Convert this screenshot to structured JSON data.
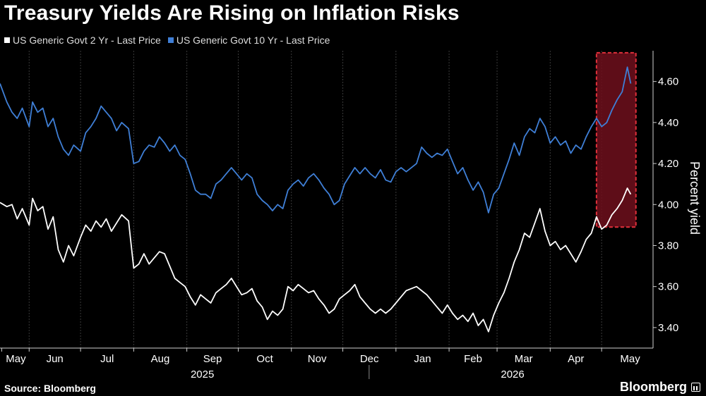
{
  "chart_data": {
    "type": "line",
    "title": "Treasury Yields Are Rising on Inflation Risks",
    "ylabel": "Percent yield",
    "ylim": [
      3.3,
      4.75
    ],
    "y_ticks": [
      3.4,
      3.6,
      3.8,
      4.0,
      4.2,
      4.4,
      4.6
    ],
    "y_tick_labels": [
      "3.40",
      "3.60",
      "3.80",
      "4.00",
      "4.20",
      "4.40",
      "4.60"
    ],
    "xlim": [
      "2025-05-15",
      "2026-05-31"
    ],
    "x_ticks": [
      {
        "label": "May",
        "date": "2025-05-16"
      },
      {
        "label": "Jun",
        "date": "2025-06-01"
      },
      {
        "label": "Jul",
        "date": "2025-07-01"
      },
      {
        "label": "Aug",
        "date": "2025-08-01"
      },
      {
        "label": "Sep",
        "date": "2025-09-01"
      },
      {
        "label": "Oct",
        "date": "2025-10-01"
      },
      {
        "label": "Nov",
        "date": "2025-11-01"
      },
      {
        "label": "Dec",
        "date": "2025-12-01"
      },
      {
        "label": "Jan",
        "date": "2026-01-01"
      },
      {
        "label": "Feb",
        "date": "2026-02-01"
      },
      {
        "label": "Mar",
        "date": "2026-03-01"
      },
      {
        "label": "Apr",
        "date": "2026-04-01"
      },
      {
        "label": "May",
        "date": "2026-05-01"
      }
    ],
    "year_labels": [
      {
        "label": "2025",
        "date": "2025-09-01"
      },
      {
        "label": "2026",
        "date": "2026-03-01"
      }
    ],
    "year_divider_date": "2026-01-01",
    "highlight": {
      "x_start": "2026-04-28",
      "x_end": "2026-05-21",
      "y_start": 3.89,
      "y_end": 4.74,
      "fill": "#6e0f1c",
      "border": "#e0303a"
    },
    "grid": "vertical",
    "legend_position": "top-left",
    "series": [
      {
        "name": "US Generic Govt 2 Yr - Last Price",
        "color": "#ffffff",
        "points": [
          [
            "2025-05-15",
            4.01
          ],
          [
            "2025-05-19",
            3.99
          ],
          [
            "2025-05-22",
            4.0
          ],
          [
            "2025-05-25",
            3.93
          ],
          [
            "2025-05-28",
            3.98
          ],
          [
            "2025-06-01",
            3.9
          ],
          [
            "2025-06-03",
            4.03
          ],
          [
            "2025-06-06",
            3.97
          ],
          [
            "2025-06-09",
            3.99
          ],
          [
            "2025-06-12",
            3.88
          ],
          [
            "2025-06-15",
            3.94
          ],
          [
            "2025-06-18",
            3.78
          ],
          [
            "2025-06-21",
            3.72
          ],
          [
            "2025-06-24",
            3.8
          ],
          [
            "2025-06-27",
            3.75
          ],
          [
            "2025-07-01",
            3.84
          ],
          [
            "2025-07-04",
            3.9
          ],
          [
            "2025-07-07",
            3.87
          ],
          [
            "2025-07-10",
            3.92
          ],
          [
            "2025-07-13",
            3.89
          ],
          [
            "2025-07-16",
            3.93
          ],
          [
            "2025-07-19",
            3.87
          ],
          [
            "2025-07-22",
            3.91
          ],
          [
            "2025-07-25",
            3.95
          ],
          [
            "2025-07-29",
            3.92
          ],
          [
            "2025-08-01",
            3.69
          ],
          [
            "2025-08-04",
            3.71
          ],
          [
            "2025-08-07",
            3.76
          ],
          [
            "2025-08-10",
            3.71
          ],
          [
            "2025-08-13",
            3.74
          ],
          [
            "2025-08-16",
            3.77
          ],
          [
            "2025-08-19",
            3.76
          ],
          [
            "2025-08-22",
            3.7
          ],
          [
            "2025-08-25",
            3.64
          ],
          [
            "2025-08-28",
            3.62
          ],
          [
            "2025-08-31",
            3.6
          ],
          [
            "2025-09-03",
            3.55
          ],
          [
            "2025-09-06",
            3.51
          ],
          [
            "2025-09-09",
            3.56
          ],
          [
            "2025-09-12",
            3.54
          ],
          [
            "2025-09-15",
            3.52
          ],
          [
            "2025-09-18",
            3.57
          ],
          [
            "2025-09-21",
            3.59
          ],
          [
            "2025-09-24",
            3.61
          ],
          [
            "2025-09-27",
            3.64
          ],
          [
            "2025-09-30",
            3.6
          ],
          [
            "2025-10-03",
            3.56
          ],
          [
            "2025-10-06",
            3.57
          ],
          [
            "2025-10-09",
            3.59
          ],
          [
            "2025-10-12",
            3.53
          ],
          [
            "2025-10-15",
            3.5
          ],
          [
            "2025-10-18",
            3.44
          ],
          [
            "2025-10-21",
            3.48
          ],
          [
            "2025-10-24",
            3.46
          ],
          [
            "2025-10-27",
            3.49
          ],
          [
            "2025-10-30",
            3.6
          ],
          [
            "2025-11-02",
            3.58
          ],
          [
            "2025-11-05",
            3.61
          ],
          [
            "2025-11-08",
            3.59
          ],
          [
            "2025-11-11",
            3.57
          ],
          [
            "2025-11-14",
            3.58
          ],
          [
            "2025-11-17",
            3.54
          ],
          [
            "2025-11-20",
            3.51
          ],
          [
            "2025-11-23",
            3.47
          ],
          [
            "2025-11-26",
            3.49
          ],
          [
            "2025-11-29",
            3.54
          ],
          [
            "2025-12-02",
            3.56
          ],
          [
            "2025-12-05",
            3.58
          ],
          [
            "2025-12-08",
            3.61
          ],
          [
            "2025-12-11",
            3.55
          ],
          [
            "2025-12-14",
            3.52
          ],
          [
            "2025-12-17",
            3.49
          ],
          [
            "2025-12-20",
            3.47
          ],
          [
            "2025-12-23",
            3.49
          ],
          [
            "2025-12-26",
            3.47
          ],
          [
            "2025-12-29",
            3.49
          ],
          [
            "2026-01-01",
            3.52
          ],
          [
            "2026-01-04",
            3.55
          ],
          [
            "2026-01-07",
            3.58
          ],
          [
            "2026-01-10",
            3.59
          ],
          [
            "2026-01-13",
            3.6
          ],
          [
            "2026-01-16",
            3.58
          ],
          [
            "2026-01-19",
            3.56
          ],
          [
            "2026-01-22",
            3.53
          ],
          [
            "2026-01-25",
            3.5
          ],
          [
            "2026-01-28",
            3.47
          ],
          [
            "2026-01-31",
            3.51
          ],
          [
            "2026-02-03",
            3.47
          ],
          [
            "2026-02-06",
            3.44
          ],
          [
            "2026-02-09",
            3.46
          ],
          [
            "2026-02-12",
            3.43
          ],
          [
            "2026-02-15",
            3.47
          ],
          [
            "2026-02-18",
            3.41
          ],
          [
            "2026-02-21",
            3.44
          ],
          [
            "2026-02-24",
            3.38
          ],
          [
            "2026-02-27",
            3.46
          ],
          [
            "2026-03-02",
            3.52
          ],
          [
            "2026-03-05",
            3.57
          ],
          [
            "2026-03-08",
            3.64
          ],
          [
            "2026-03-11",
            3.72
          ],
          [
            "2026-03-14",
            3.78
          ],
          [
            "2026-03-17",
            3.86
          ],
          [
            "2026-03-20",
            3.84
          ],
          [
            "2026-03-23",
            3.91
          ],
          [
            "2026-03-26",
            3.98
          ],
          [
            "2026-03-29",
            3.87
          ],
          [
            "2026-04-01",
            3.8
          ],
          [
            "2026-04-04",
            3.82
          ],
          [
            "2026-04-07",
            3.78
          ],
          [
            "2026-04-10",
            3.8
          ],
          [
            "2026-04-13",
            3.76
          ],
          [
            "2026-04-16",
            3.72
          ],
          [
            "2026-04-19",
            3.77
          ],
          [
            "2026-04-22",
            3.83
          ],
          [
            "2026-04-25",
            3.86
          ],
          [
            "2026-04-28",
            3.94
          ],
          [
            "2026-05-01",
            3.88
          ],
          [
            "2026-05-04",
            3.9
          ],
          [
            "2026-05-07",
            3.95
          ],
          [
            "2026-05-10",
            3.98
          ],
          [
            "2026-05-13",
            4.02
          ],
          [
            "2026-05-16",
            4.08
          ],
          [
            "2026-05-18",
            4.05
          ]
        ]
      },
      {
        "name": "US Generic Govt 10 Yr - Last Price",
        "color": "#3f7fd6",
        "points": [
          [
            "2025-05-15",
            4.59
          ],
          [
            "2025-05-19",
            4.5
          ],
          [
            "2025-05-22",
            4.45
          ],
          [
            "2025-05-25",
            4.42
          ],
          [
            "2025-05-28",
            4.47
          ],
          [
            "2025-06-01",
            4.38
          ],
          [
            "2025-06-03",
            4.5
          ],
          [
            "2025-06-06",
            4.45
          ],
          [
            "2025-06-09",
            4.47
          ],
          [
            "2025-06-12",
            4.38
          ],
          [
            "2025-06-15",
            4.42
          ],
          [
            "2025-06-18",
            4.33
          ],
          [
            "2025-06-21",
            4.27
          ],
          [
            "2025-06-24",
            4.24
          ],
          [
            "2025-06-27",
            4.29
          ],
          [
            "2025-07-01",
            4.26
          ],
          [
            "2025-07-04",
            4.35
          ],
          [
            "2025-07-07",
            4.38
          ],
          [
            "2025-07-10",
            4.42
          ],
          [
            "2025-07-13",
            4.48
          ],
          [
            "2025-07-16",
            4.45
          ],
          [
            "2025-07-19",
            4.42
          ],
          [
            "2025-07-22",
            4.36
          ],
          [
            "2025-07-25",
            4.4
          ],
          [
            "2025-07-29",
            4.37
          ],
          [
            "2025-08-01",
            4.2
          ],
          [
            "2025-08-04",
            4.21
          ],
          [
            "2025-08-07",
            4.26
          ],
          [
            "2025-08-10",
            4.29
          ],
          [
            "2025-08-13",
            4.28
          ],
          [
            "2025-08-16",
            4.33
          ],
          [
            "2025-08-19",
            4.3
          ],
          [
            "2025-08-22",
            4.26
          ],
          [
            "2025-08-25",
            4.29
          ],
          [
            "2025-08-28",
            4.24
          ],
          [
            "2025-08-31",
            4.22
          ],
          [
            "2025-09-03",
            4.15
          ],
          [
            "2025-09-06",
            4.07
          ],
          [
            "2025-09-09",
            4.05
          ],
          [
            "2025-09-12",
            4.05
          ],
          [
            "2025-09-15",
            4.03
          ],
          [
            "2025-09-18",
            4.1
          ],
          [
            "2025-09-21",
            4.12
          ],
          [
            "2025-09-24",
            4.15
          ],
          [
            "2025-09-27",
            4.18
          ],
          [
            "2025-09-30",
            4.15
          ],
          [
            "2025-10-03",
            4.12
          ],
          [
            "2025-10-06",
            4.15
          ],
          [
            "2025-10-09",
            4.13
          ],
          [
            "2025-10-12",
            4.05
          ],
          [
            "2025-10-15",
            4.02
          ],
          [
            "2025-10-18",
            4.0
          ],
          [
            "2025-10-21",
            3.97
          ],
          [
            "2025-10-24",
            4.0
          ],
          [
            "2025-10-27",
            3.98
          ],
          [
            "2025-10-30",
            4.07
          ],
          [
            "2025-11-02",
            4.1
          ],
          [
            "2025-11-05",
            4.12
          ],
          [
            "2025-11-08",
            4.09
          ],
          [
            "2025-11-11",
            4.13
          ],
          [
            "2025-11-14",
            4.15
          ],
          [
            "2025-11-17",
            4.12
          ],
          [
            "2025-11-20",
            4.08
          ],
          [
            "2025-11-23",
            4.05
          ],
          [
            "2025-11-26",
            4.0
          ],
          [
            "2025-11-29",
            4.02
          ],
          [
            "2025-12-02",
            4.1
          ],
          [
            "2025-12-05",
            4.14
          ],
          [
            "2025-12-08",
            4.18
          ],
          [
            "2025-12-11",
            4.15
          ],
          [
            "2025-12-14",
            4.18
          ],
          [
            "2025-12-17",
            4.15
          ],
          [
            "2025-12-20",
            4.13
          ],
          [
            "2025-12-23",
            4.17
          ],
          [
            "2025-12-26",
            4.12
          ],
          [
            "2025-12-29",
            4.11
          ],
          [
            "2026-01-01",
            4.16
          ],
          [
            "2026-01-04",
            4.18
          ],
          [
            "2026-01-07",
            4.16
          ],
          [
            "2026-01-10",
            4.18
          ],
          [
            "2026-01-13",
            4.2
          ],
          [
            "2026-01-16",
            4.28
          ],
          [
            "2026-01-19",
            4.25
          ],
          [
            "2026-01-22",
            4.23
          ],
          [
            "2026-01-25",
            4.25
          ],
          [
            "2026-01-28",
            4.24
          ],
          [
            "2026-01-31",
            4.27
          ],
          [
            "2026-02-03",
            4.21
          ],
          [
            "2026-02-06",
            4.15
          ],
          [
            "2026-02-09",
            4.18
          ],
          [
            "2026-02-12",
            4.12
          ],
          [
            "2026-02-15",
            4.07
          ],
          [
            "2026-02-18",
            4.11
          ],
          [
            "2026-02-21",
            4.06
          ],
          [
            "2026-02-24",
            3.96
          ],
          [
            "2026-02-27",
            4.05
          ],
          [
            "2026-03-02",
            4.08
          ],
          [
            "2026-03-05",
            4.15
          ],
          [
            "2026-03-08",
            4.22
          ],
          [
            "2026-03-11",
            4.3
          ],
          [
            "2026-03-14",
            4.24
          ],
          [
            "2026-03-17",
            4.33
          ],
          [
            "2026-03-20",
            4.37
          ],
          [
            "2026-03-23",
            4.35
          ],
          [
            "2026-03-26",
            4.42
          ],
          [
            "2026-03-29",
            4.38
          ],
          [
            "2026-04-01",
            4.3
          ],
          [
            "2026-04-04",
            4.33
          ],
          [
            "2026-04-07",
            4.29
          ],
          [
            "2026-04-10",
            4.31
          ],
          [
            "2026-04-13",
            4.25
          ],
          [
            "2026-04-16",
            4.29
          ],
          [
            "2026-04-19",
            4.27
          ],
          [
            "2026-04-22",
            4.33
          ],
          [
            "2026-04-25",
            4.38
          ],
          [
            "2026-04-28",
            4.42
          ],
          [
            "2026-05-01",
            4.38
          ],
          [
            "2026-05-04",
            4.4
          ],
          [
            "2026-05-07",
            4.46
          ],
          [
            "2026-05-10",
            4.51
          ],
          [
            "2026-05-13",
            4.55
          ],
          [
            "2026-05-16",
            4.67
          ],
          [
            "2026-05-18",
            4.59
          ]
        ]
      }
    ]
  },
  "footer": {
    "source": "Source: Bloomberg",
    "brand": "Bloomberg"
  }
}
